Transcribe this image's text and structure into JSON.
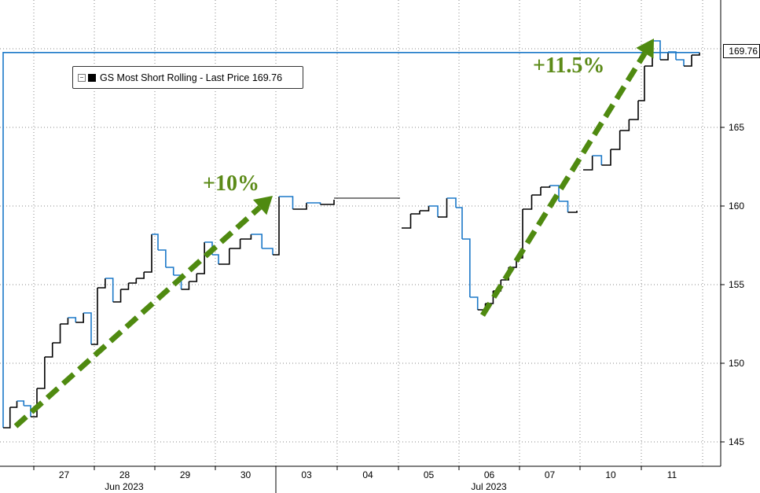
{
  "legend": {
    "label": "GS Most Short Rolling - Last Price 169.76"
  },
  "last_price_tag": "169.76",
  "annotations": {
    "first": "+10%",
    "second": "+11.5%"
  },
  "colors": {
    "arrow": "#4f8a10",
    "annotation_text": "#5b8a17",
    "series_up": "#000000",
    "series_down": "#1b78c8",
    "grid": "#888888"
  },
  "chart_data": {
    "type": "line",
    "title": "",
    "xlabel": "",
    "ylabel": "",
    "ylim": [
      144,
      172
    ],
    "y_axis_side": "right",
    "y_ticks": [
      145,
      150,
      155,
      160,
      165
    ],
    "grid": true,
    "x_tick_labels": [
      "27",
      "28",
      "29",
      "30",
      "03",
      "04",
      "05",
      "06",
      "07",
      "10",
      "11"
    ],
    "month_labels": [
      "Jun 2023",
      "Jul 2023"
    ],
    "series": [
      {
        "name": "GS Most Short Rolling",
        "last_price": 169.76,
        "points": [
          [
            "26",
            145.9
          ],
          [
            "26",
            147.2
          ],
          [
            "26",
            147.6
          ],
          [
            "26",
            147.3
          ],
          [
            "26",
            146.6
          ],
          [
            "27",
            148.4
          ],
          [
            "27",
            150.4
          ],
          [
            "27",
            151.3
          ],
          [
            "27",
            152.5
          ],
          [
            "27",
            152.9
          ],
          [
            "27",
            152.6
          ],
          [
            "27",
            153.2
          ],
          [
            "27",
            151.2
          ],
          [
            "28",
            154.8
          ],
          [
            "28",
            155.4
          ],
          [
            "28",
            153.9
          ],
          [
            "28",
            154.7
          ],
          [
            "28",
            155.1
          ],
          [
            "28",
            155.4
          ],
          [
            "28",
            155.8
          ],
          [
            "28",
            158.2
          ],
          [
            "29",
            157.2
          ],
          [
            "29",
            156.1
          ],
          [
            "29",
            155.6
          ],
          [
            "29",
            154.7
          ],
          [
            "29",
            155.2
          ],
          [
            "29",
            155.7
          ],
          [
            "29",
            157.7
          ],
          [
            "29",
            156.9
          ],
          [
            "30",
            156.3
          ],
          [
            "30",
            157.3
          ],
          [
            "30",
            157.9
          ],
          [
            "30",
            158.2
          ],
          [
            "30",
            157.3
          ],
          [
            "30",
            156.9
          ],
          [
            "03",
            160.6
          ],
          [
            "03",
            159.8
          ],
          [
            "03",
            160.2
          ],
          [
            "03",
            160.1
          ],
          [
            "03",
            160.4
          ],
          [
            "05",
            158.6
          ],
          [
            "05",
            159.5
          ],
          [
            "05",
            159.7
          ],
          [
            "05",
            160.0
          ],
          [
            "05",
            159.3
          ],
          [
            "05",
            160.5
          ],
          [
            "05",
            159.9
          ],
          [
            "06",
            157.9
          ],
          [
            "06",
            154.2
          ],
          [
            "06",
            153.4
          ],
          [
            "06",
            153.8
          ],
          [
            "06",
            154.6
          ],
          [
            "06",
            155.3
          ],
          [
            "06",
            156.1
          ],
          [
            "06",
            156.7
          ],
          [
            "07",
            159.8
          ],
          [
            "07",
            160.7
          ],
          [
            "07",
            161.2
          ],
          [
            "07",
            161.3
          ],
          [
            "07",
            160.3
          ],
          [
            "07",
            159.6
          ],
          [
            "07",
            159.7
          ],
          [
            "10",
            162.3
          ],
          [
            "10",
            163.2
          ],
          [
            "10",
            162.6
          ],
          [
            "10",
            163.6
          ],
          [
            "10",
            164.8
          ],
          [
            "10",
            165.5
          ],
          [
            "10",
            166.7
          ],
          [
            "11",
            168.9
          ],
          [
            "11",
            170.5
          ],
          [
            "11",
            169.3
          ],
          [
            "11",
            169.8
          ],
          [
            "11",
            169.3
          ],
          [
            "11",
            168.9
          ],
          [
            "11",
            169.6
          ],
          [
            "11",
            169.76
          ]
        ]
      }
    ]
  }
}
